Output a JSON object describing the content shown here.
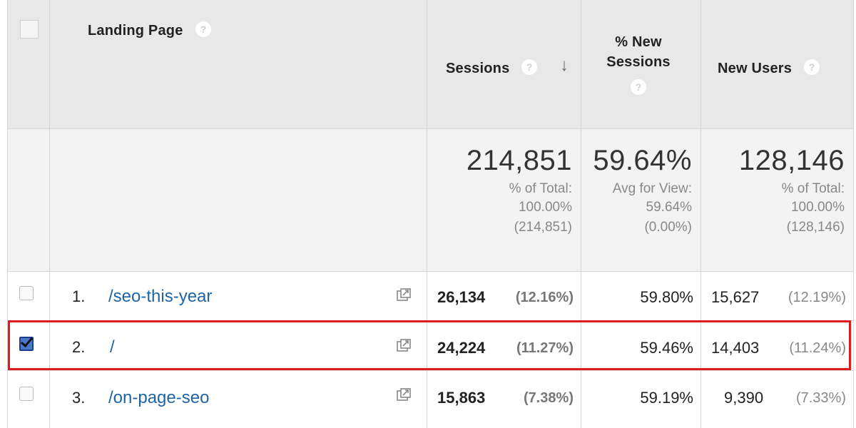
{
  "columns": {
    "landing_page": "Landing Page",
    "sessions": "Sessions",
    "new_sessions_line1": "% New",
    "new_sessions_line2": "Sessions",
    "new_users": "New Users",
    "help_glyph": "?",
    "sort_glyph": "↓"
  },
  "totals": {
    "sessions": {
      "value": "214,851",
      "line1": "% of Total:",
      "line2": "100.00%",
      "line3": "(214,851)"
    },
    "new_sessions": {
      "value": "59.64%",
      "line1": "Avg for View:",
      "line2": "59.64%",
      "line3": "(0.00%)"
    },
    "new_users": {
      "value": "128,146",
      "line1": "% of Total:",
      "line2": "100.00%",
      "line3": "(128,146)"
    }
  },
  "rows": [
    {
      "index": "1.",
      "page": "/seo-this-year",
      "sessions": "26,134",
      "sessions_pct": "(12.16%)",
      "new_sessions": "59.80%",
      "new_users": "15,627",
      "new_users_pct": "(12.19%)",
      "checked": false
    },
    {
      "index": "2.",
      "page": "/",
      "sessions": "24,224",
      "sessions_pct": "(11.27%)",
      "new_sessions": "59.46%",
      "new_users": "14,403",
      "new_users_pct": "(11.24%)",
      "checked": true
    },
    {
      "index": "3.",
      "page": "/on-page-seo",
      "sessions": "15,863",
      "sessions_pct": "(7.38%)",
      "new_sessions": "59.19%",
      "new_users": "9,390",
      "new_users_pct": "(7.33%)",
      "checked": false
    }
  ],
  "colors": {
    "link": "#1f64a5",
    "highlight": "#e01b1b",
    "header_bg": "#e8e8e8"
  },
  "icons": {
    "external": "external-link-icon",
    "help": "help-circle-icon",
    "sort": "sort-descending-icon"
  }
}
